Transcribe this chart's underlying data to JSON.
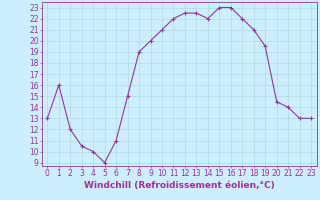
{
  "x": [
    0,
    1,
    2,
    3,
    4,
    5,
    6,
    7,
    8,
    9,
    10,
    11,
    12,
    13,
    14,
    15,
    16,
    17,
    18,
    19,
    20,
    21,
    22,
    23
  ],
  "y": [
    13,
    16,
    12,
    10.5,
    10,
    9,
    11,
    15,
    19,
    20,
    21,
    22,
    22.5,
    22.5,
    22,
    23,
    23,
    22,
    21,
    19.5,
    14.5,
    14,
    13,
    13
  ],
  "line_color": "#993399",
  "marker": "+",
  "marker_size": 3,
  "marker_lw": 0.8,
  "line_width": 0.8,
  "bg_color": "#cceeff",
  "grid_color": "#aadddd",
  "xlabel": "Windchill (Refroidissement éolien,°C)",
  "xlim": [
    -0.5,
    23.5
  ],
  "ylim": [
    8.7,
    23.5
  ],
  "yticks": [
    9,
    10,
    11,
    12,
    13,
    14,
    15,
    16,
    17,
    18,
    19,
    20,
    21,
    22,
    23
  ],
  "xticks": [
    0,
    1,
    2,
    3,
    4,
    5,
    6,
    7,
    8,
    9,
    10,
    11,
    12,
    13,
    14,
    15,
    16,
    17,
    18,
    19,
    20,
    21,
    22,
    23
  ],
  "tick_label_fontsize": 5.5,
  "xlabel_fontsize": 6.5
}
